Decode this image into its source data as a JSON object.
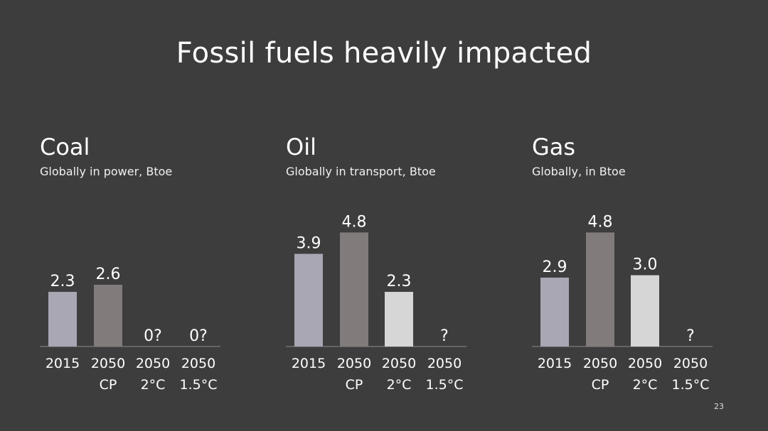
{
  "slide": {
    "title": "Fossil fuels heavily impacted",
    "page_number": "23"
  },
  "colors": {
    "background": "#3d3d3d",
    "bar_2015": "#a9a7b3",
    "bar_2050_cp": "#817c7b",
    "bar_2050_2c": "#d6d6d6",
    "axis": "#8a8a8a",
    "text": "#ffffff"
  },
  "chart_data": [
    {
      "type": "bar",
      "title": "Coal",
      "subtitle": "Globally in power, Btoe",
      "categories": [
        "2015",
        "2050\nCP",
        "2050\n2°C",
        "2050\n1.5°C"
      ],
      "values": [
        2.3,
        2.6,
        null,
        null
      ],
      "data_labels": [
        "2.3",
        "2.6",
        "0?",
        "0?"
      ],
      "ylim": [
        0,
        5.2
      ]
    },
    {
      "type": "bar",
      "title": "Oil",
      "subtitle": "Globally in transport, Btoe",
      "categories": [
        "2015",
        "2050\nCP",
        "2050\n2°C",
        "2050\n1.5°C"
      ],
      "values": [
        3.9,
        4.8,
        2.3,
        null
      ],
      "data_labels": [
        "3.9",
        "4.8",
        "2.3",
        "?"
      ],
      "ylim": [
        0,
        5.2
      ]
    },
    {
      "type": "bar",
      "title": "Gas",
      "subtitle": "Globally, in Btoe",
      "categories": [
        "2015",
        "2050\nCP",
        "2050\n2°C",
        "2050\n1.5°C"
      ],
      "values": [
        2.9,
        4.8,
        3.0,
        null
      ],
      "data_labels": [
        "2.9",
        "4.8",
        "3.0",
        "?"
      ],
      "ylim": [
        0,
        5.2
      ]
    }
  ]
}
